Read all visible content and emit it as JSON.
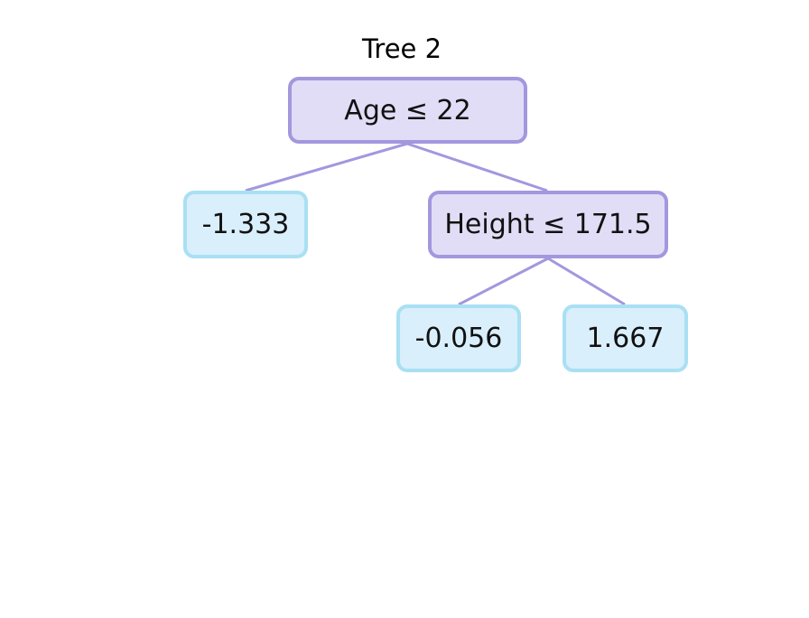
{
  "diagram": {
    "title": "Tree 2",
    "colors": {
      "split_fill": "#e1ddf6",
      "split_border": "#a397de",
      "leaf_fill": "#d9effb",
      "leaf_border": "#a9e0f3",
      "edge": "#a397de"
    },
    "nodes": {
      "root": {
        "type": "split",
        "label": "Age ≤ 22"
      },
      "left_leaf": {
        "type": "leaf",
        "label": "-1.333"
      },
      "height_split": {
        "type": "split",
        "label": "Height ≤ 171.5"
      },
      "height_left_leaf": {
        "type": "leaf",
        "label": "-0.056"
      },
      "height_right_leaf": {
        "type": "leaf",
        "label": "1.667"
      }
    },
    "edges": [
      {
        "from": "root",
        "to": "left_leaf"
      },
      {
        "from": "root",
        "to": "height_split"
      },
      {
        "from": "height_split",
        "to": "height_left_leaf"
      },
      {
        "from": "height_split",
        "to": "height_right_leaf"
      }
    ]
  }
}
